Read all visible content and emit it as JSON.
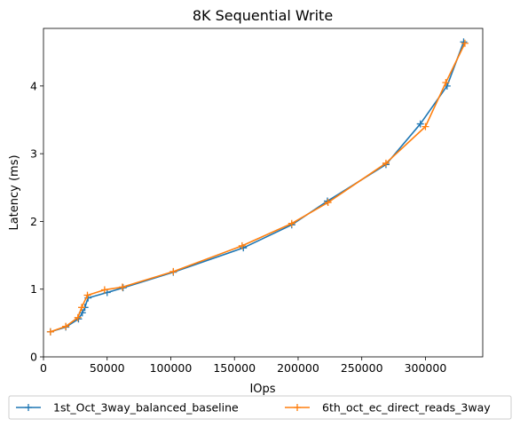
{
  "chart_data": {
    "type": "line",
    "title": "8K  Sequential Write",
    "xlabel": "IOps",
    "ylabel": "Latency (ms)",
    "xlim": [
      0,
      345000
    ],
    "ylim": [
      0,
      4.85
    ],
    "x_ticks": [
      0,
      50000,
      100000,
      150000,
      200000,
      250000,
      300000
    ],
    "x_tick_labels": [
      "0",
      "50000",
      "100000",
      "150000",
      "200000",
      "250000",
      "300000"
    ],
    "y_ticks": [
      0,
      1,
      2,
      3,
      4
    ],
    "y_tick_labels": [
      "0",
      "1",
      "2",
      "3",
      "4"
    ],
    "grid": false,
    "legend_placement": "below plot, two columns",
    "marker": "+",
    "series": [
      {
        "name": "1st_Oct_3way_balanced_baseline",
        "color": "#1f77b4",
        "points": [
          [
            5500,
            0.37
          ],
          [
            17500,
            0.44
          ],
          [
            27500,
            0.56
          ],
          [
            30500,
            0.65
          ],
          [
            32500,
            0.73
          ],
          [
            35000,
            0.87
          ],
          [
            50000,
            0.95
          ],
          [
            62500,
            1.02
          ],
          [
            102000,
            1.25
          ],
          [
            157000,
            1.61
          ],
          [
            195000,
            1.95
          ],
          [
            223000,
            2.3
          ],
          [
            269000,
            2.84
          ],
          [
            296000,
            3.44
          ],
          [
            317000,
            4.0
          ],
          [
            330000,
            4.65
          ]
        ]
      },
      {
        "name": "6th_oct_ec_direct_reads_3way",
        "color": "#ff7f0e",
        "points": [
          [
            5500,
            0.37
          ],
          [
            17500,
            0.45
          ],
          [
            27000,
            0.58
          ],
          [
            30000,
            0.73
          ],
          [
            34500,
            0.91
          ],
          [
            48000,
            0.99
          ],
          [
            62000,
            1.03
          ],
          [
            102000,
            1.26
          ],
          [
            156000,
            1.64
          ],
          [
            195000,
            1.97
          ],
          [
            223500,
            2.28
          ],
          [
            269000,
            2.86
          ],
          [
            300000,
            3.4
          ],
          [
            316000,
            4.05
          ],
          [
            331000,
            4.63
          ]
        ]
      }
    ]
  }
}
